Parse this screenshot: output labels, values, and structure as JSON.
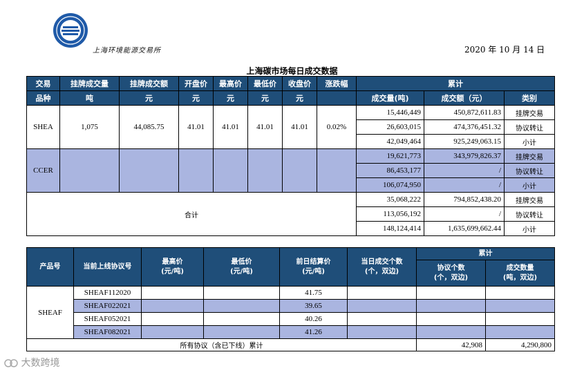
{
  "header": {
    "logo_text": "上海环境能源交易所",
    "date": "2020 年 10 月 14 日",
    "title": "上海碳市场每日成交数据"
  },
  "table1": {
    "headers": {
      "variety_top": "交易",
      "variety_bottom": "品种",
      "listed_volume": "挂牌成交量",
      "listed_amount": "挂牌成交额",
      "open": "开盘价",
      "high": "最高价",
      "low": "最低价",
      "close": "收盘价",
      "change": "涨跌幅",
      "cumulative": "累计",
      "cum_volume": "成交量(吨)",
      "cum_amount": "成交额（元）",
      "category": "类别",
      "unit_ton": "吨",
      "unit_yuan": "元"
    },
    "shea": {
      "name": "SHEA",
      "listed_volume": "1,075",
      "listed_amount": "44,085.75",
      "open": "41.01",
      "high": "41.01",
      "low": "41.01",
      "close": "41.01",
      "change": "0.02%",
      "rows": [
        {
          "volume": "15,446,449",
          "amount": "450,872,611.83",
          "category": "挂牌交易"
        },
        {
          "volume": "26,603,015",
          "amount": "474,376,451.32",
          "category": "协议转让"
        },
        {
          "volume": "42,049,464",
          "amount": "925,249,063.15",
          "category": "小计"
        }
      ]
    },
    "ccer": {
      "name": "CCER",
      "rows": [
        {
          "volume": "19,621,773",
          "amount": "343,979,826.37",
          "category": "挂牌交易"
        },
        {
          "volume": "86,453,177",
          "amount": "/",
          "category": "协议转让"
        },
        {
          "volume": "106,074,950",
          "amount": "/",
          "category": "小计"
        }
      ]
    },
    "total": {
      "label": "合计",
      "rows": [
        {
          "volume": "35,068,222",
          "amount": "794,852,438.20",
          "category": "挂牌交易"
        },
        {
          "volume": "113,056,192",
          "amount": "/",
          "category": "协议转让"
        },
        {
          "volume": "148,124,414",
          "amount": "1,635,699,662.44",
          "category": "小计"
        }
      ]
    }
  },
  "table2": {
    "headers": {
      "product": "产品号",
      "contract": "当前上线协议号",
      "high": "最高价",
      "high_unit": "(元/吨)",
      "low": "最低价",
      "low_unit": "(元/吨)",
      "settle": "前日结算价",
      "settle_unit": "(元/吨)",
      "count": "当日成交个数",
      "count_unit": "(个，双边)",
      "cumulative": "累计",
      "agreements": "协议个数",
      "agreements_unit": "(个，双边)",
      "volume": "成交数量",
      "volume_unit": "(吨，双边)"
    },
    "product": "SHEAF",
    "rows": [
      {
        "contract": "SHEAF112020",
        "settle": "41.75"
      },
      {
        "contract": "SHEAF022021",
        "settle": "39.65"
      },
      {
        "contract": "SHEAF052021",
        "settle": "40.26"
      },
      {
        "contract": "SHEAF082021",
        "settle": "41.26"
      }
    ],
    "footer": {
      "label": "所有协议（含已下线）累计",
      "agreements": "42,908",
      "volume": "4,290,800"
    }
  },
  "watermark": "大数跨境",
  "colors": {
    "header_bg": "#1f4e79",
    "highlight": "#aab5e0"
  }
}
